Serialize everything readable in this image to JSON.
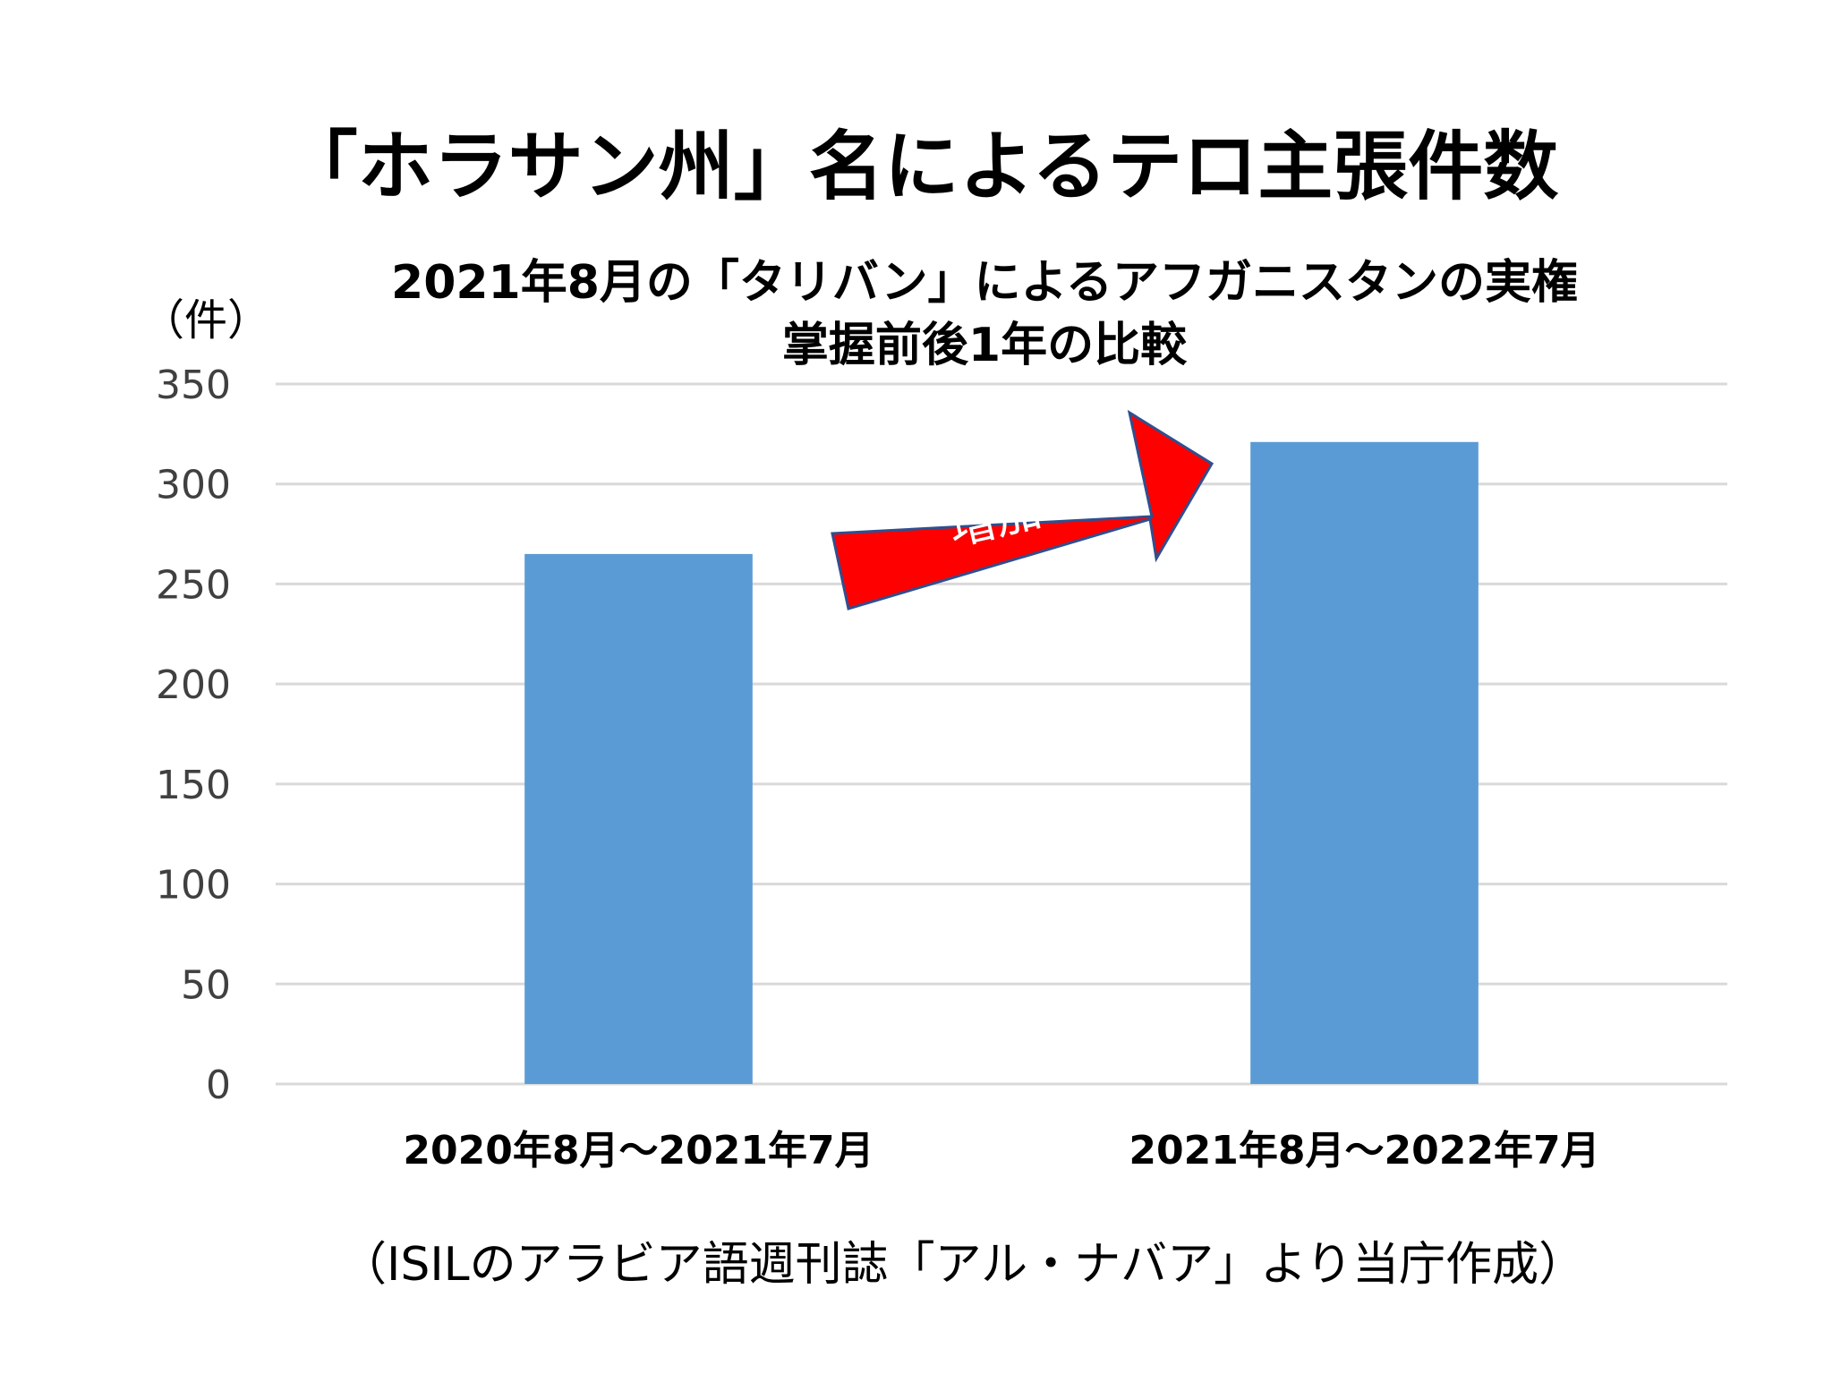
{
  "chart_data": {
    "type": "bar",
    "title": "「ホラサン州」名によるテロ主張件数",
    "subtitle_lines": [
      "2021年8月の「タリバン」によるアフガニスタンの実権",
      "掌握前後1年の比較"
    ],
    "unit_label": "（件）",
    "categories": [
      "2020年8月～2021年7月",
      "2021年8月～2022年7月"
    ],
    "values": [
      265,
      321
    ],
    "ylim": [
      0,
      350
    ],
    "yticks": [
      0,
      50,
      100,
      150,
      200,
      250,
      300,
      350
    ],
    "grid": true,
    "bar_color": "#5B9BD5",
    "annotation": {
      "text": "増加",
      "color": "#FF0000",
      "shape": "arrow-up-right"
    },
    "source": "（ISILのアラビア語週刊誌「アル・ナバア」より当庁作成）"
  }
}
